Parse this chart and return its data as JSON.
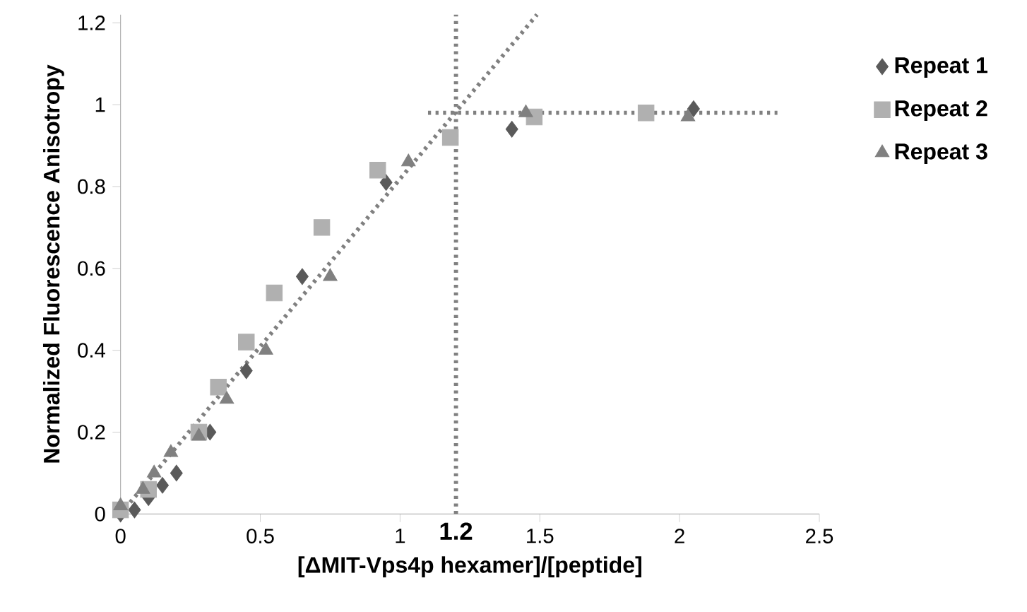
{
  "chart_data": {
    "type": "scatter",
    "xlabel": "[ΔMIT-Vps4p hexamer]/[peptide]",
    "ylabel": "Normalized Fluorescence Anisotropy",
    "xlim": [
      0,
      2.5
    ],
    "ylim": [
      0,
      1.22
    ],
    "xticks": [
      0,
      0.5,
      1,
      1.5,
      2,
      2.5
    ],
    "yticks": [
      0,
      0.2,
      0.4,
      0.6,
      0.8,
      1,
      1.2
    ],
    "legend": "right",
    "grid": false,
    "ref_lines": [
      {
        "axis": "x",
        "value": 1.2,
        "label": "1.2",
        "color": "#808080",
        "line_style": "dotted"
      }
    ],
    "series": [
      {
        "name": "Repeat 1",
        "color": "#5a5a5a",
        "marker": "diamond",
        "x": [
          0,
          0.05,
          0.1,
          0.15,
          0.2,
          0.32,
          0.45,
          0.65,
          0.95,
          1.4,
          2.05
        ],
        "values": [
          0,
          0.01,
          0.04,
          0.07,
          0.1,
          0.2,
          0.35,
          0.58,
          0.81,
          0.94,
          0.99
        ]
      },
      {
        "name": "Repeat 2",
        "color": "#b0b0b0",
        "marker": "square",
        "x": [
          0,
          0.1,
          0.28,
          0.35,
          0.45,
          0.55,
          0.72,
          0.92,
          1.18,
          1.48,
          1.88
        ],
        "values": [
          0.01,
          0.06,
          0.2,
          0.31,
          0.42,
          0.54,
          0.7,
          0.84,
          0.92,
          0.97,
          0.98
        ]
      },
      {
        "name": "Repeat 3",
        "color": "#808080",
        "marker": "triangle",
        "x": [
          0,
          0.08,
          0.12,
          0.18,
          0.28,
          0.38,
          0.52,
          0.75,
          1.03,
          1.45,
          2.03
        ],
        "values": [
          0.02,
          0.06,
          0.1,
          0.15,
          0.19,
          0.28,
          0.4,
          0.58,
          0.86,
          0.98,
          0.97
        ]
      },
      {
        "type": "line",
        "color": "#808080",
        "marker": "none",
        "line_style": "dotted",
        "x": [
          0,
          1.49
        ],
        "values": [
          0,
          1.22
        ]
      },
      {
        "type": "line",
        "color": "#808080",
        "marker": "none",
        "line_style": "dotted",
        "x": [
          1.1,
          2.35
        ],
        "values": [
          0.98,
          0.98
        ]
      }
    ]
  }
}
